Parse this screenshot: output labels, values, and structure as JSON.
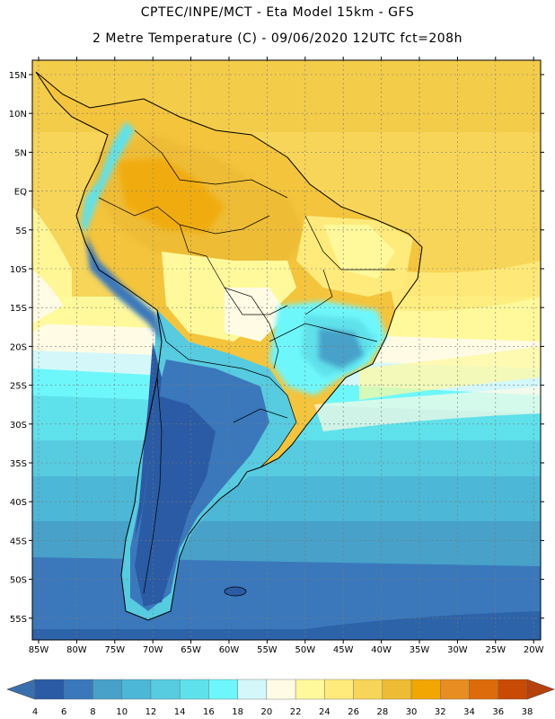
{
  "header": {
    "line1": "CPTEC/INPE/MCT -  Eta Model 15km - GFS",
    "line2": "2 Metre Temperature (C) - 09/06/2020 12UTC fct=208h"
  },
  "map": {
    "lat_labels": [
      "15N",
      "10N",
      "5N",
      "EQ",
      "5S",
      "10S",
      "15S",
      "20S",
      "25S",
      "30S",
      "35S",
      "40S",
      "45S",
      "50S",
      "55S"
    ],
    "lon_labels": [
      "85W",
      "80W",
      "75W",
      "70W",
      "65W",
      "60W",
      "55W",
      "50W",
      "45W",
      "40W",
      "35W",
      "30W",
      "25W",
      "20W"
    ]
  },
  "colorbar": {
    "values": [
      "4",
      "6",
      "8",
      "10",
      "12",
      "14",
      "16",
      "18",
      "20",
      "22",
      "24",
      "26",
      "28",
      "30",
      "32",
      "34",
      "36",
      "38"
    ],
    "colors": [
      "#2a5ba4",
      "#3a78bb",
      "#47a1c9",
      "#4cb7d6",
      "#57cbe0",
      "#5fe1eb",
      "#6ef7fb",
      "#d4f8fa",
      "#fffbe5",
      "#fff99c",
      "#feeb7c",
      "#f7d558",
      "#eebc34",
      "#f2a603",
      "#e78d22",
      "#dd6b0b",
      "#c84a04"
    ],
    "under_color": "#3a6fad",
    "over_color": "#b7410d"
  }
}
